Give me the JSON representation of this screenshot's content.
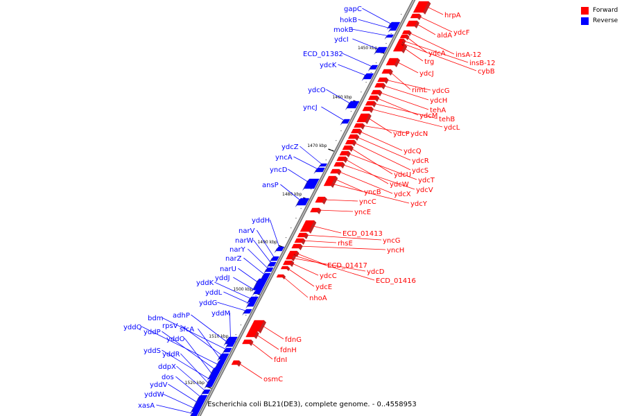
{
  "legend": {
    "forward_label": "Forward",
    "reverse_label": "Reverse",
    "forward_color": "#ff0000",
    "reverse_color": "#0000ff"
  },
  "footer": {
    "caption": "Escherichia coli BL21(DE3), complete genome. - 0..4558953"
  },
  "kbp_ticks": [
    "1450 kbp",
    "1460 kbp",
    "1470 kbp",
    "1480 kbp",
    "1490 kbp",
    "1500 kbp",
    "1510 kbp",
    "1520 kbp"
  ],
  "forward_genes": [
    "hrpA",
    "ydcF",
    "aldA",
    "insA-12",
    "ydcA",
    "insB-12",
    "trg",
    "cybB",
    "ydcJ",
    "rimL",
    "ydcG",
    "ydcH",
    "tehA",
    "ydcM",
    "tehB",
    "ydcL",
    "ydcP",
    "ydcN",
    "ydcQ",
    "ydcR",
    "ydcS",
    "ydcU",
    "ydcT",
    "ydcW",
    "ydcV",
    "ydcX",
    "yncB",
    "ydcY",
    "yncC",
    "yncE",
    "ECD_01413",
    "yncG",
    "rhsE",
    "yncH",
    "ECD_01417",
    "ydcD",
    "ECD_01416",
    "ydcC",
    "ydcE",
    "nhoA",
    "fdnG",
    "fdnH",
    "fdnI",
    "osmC"
  ],
  "reverse_genes": [
    "gapC",
    "hokB",
    "mokB",
    "ydcI",
    "ECD_01382",
    "ydcK",
    "ydcO",
    "yncJ",
    "ydcZ",
    "yncA",
    "yncD",
    "ansP",
    "yddH",
    "narV",
    "narW",
    "narY",
    "narZ",
    "narU",
    "yddJ",
    "yddK",
    "yddL",
    "yddG",
    "yddM",
    "adhP",
    "bdm",
    "rpsV",
    "sfcA",
    "yddQ",
    "yddP",
    "yddO",
    "yddS",
    "yddR",
    "ddpX",
    "dos",
    "yddV",
    "yddW",
    "xasA"
  ]
}
